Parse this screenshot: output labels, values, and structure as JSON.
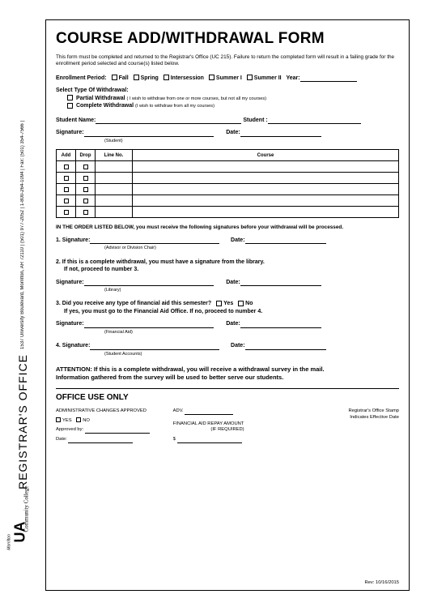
{
  "sidebar": {
    "office_title": "REGISTRAR'S OFFICE",
    "contact": "1537 University Boulevard, Morrilton, AR 72110  |  (501) 977-2052  |  1-800-264-1094  |  Fax: (501) 354-7566  |",
    "logo_main": "UA",
    "logo_top": "Community College",
    "logo_bottom": "Morrilton"
  },
  "title": "COURSE ADD/WITHDRAWAL FORM",
  "intro": "This form must be completed and returned to the Registrar's Office (UC 215). Failure to return the completed  form will result in a failing grade for the enrollment period selected and course(s) listed below.",
  "enroll": {
    "label": "Enrollment Period:",
    "options": [
      "Fall",
      "Spring",
      "Intersession",
      "Summer I",
      "Summer II"
    ],
    "year_label": "Year:"
  },
  "withdraw": {
    "heading": "Select Type Of Withdrawal:",
    "partial_label": "Partial Withdrawal",
    "partial_note": "( I wish to withdraw from one or more courses, but not all my courses)",
    "complete_label": "Complete Withdrawal",
    "complete_note": "(I wish to withdraw from all my courses)"
  },
  "student": {
    "name_label": "Student Name:",
    "id_label": "Student  :",
    "sig_label": "Signature:",
    "sig_under": "(Student)",
    "date_label": "Date:"
  },
  "table": {
    "headers": [
      "Add",
      "Drop",
      "Line No.",
      "Course"
    ],
    "row_count": 5
  },
  "order_note": "IN THE ORDER LISTED BELOW, you must receive the following signatures before your withdrawal will be processed.",
  "sig1": {
    "label": "1. Signature:",
    "under": "(Advisor or Division Chair)",
    "date": "Date:"
  },
  "step2": {
    "text": "2. If this is a complete withdrawal, you must have a signature from the library.",
    "sub": "If not, proceed to number 3.",
    "sig_label": "Signature:",
    "under": "(Library)",
    "date": "Date:"
  },
  "step3": {
    "text": "3. Did you receive any type of financial aid this semester?",
    "yes": "Yes",
    "no": "No",
    "sub": "If yes, you must go to the Financial Aid Office. If no, proceed to number 4.",
    "sig_label": "Signature:",
    "under": "(Financial Aid)",
    "date": "Date:"
  },
  "step4": {
    "label": "4. Signature:",
    "under": "(Student Accounts)",
    "date": "Date:"
  },
  "attention": {
    "line1": "ATTENTION: If this is a complete withdrawal, you will receive a withdrawal survey in the mail.",
    "line2": "Information gathered from the survey will be used to better serve our students."
  },
  "office": {
    "title": "OFFICE USE ONLY",
    "admin_label": "ADMINISTRATIVE CHANGES APPROVED",
    "yes": "YES",
    "no": "NO",
    "approved_by": "Approved by:",
    "date": "Date:",
    "adv": "ADV.",
    "repay": "FINANCIAL AID REPAY AMOUNT",
    "repay_sub": "(IF REQUIRED)",
    "dollar": "$",
    "stamp1": "Registrar's Office Stamp",
    "stamp2": "Indicates Effective Date"
  },
  "revision": "Rev: 10/16/2015"
}
